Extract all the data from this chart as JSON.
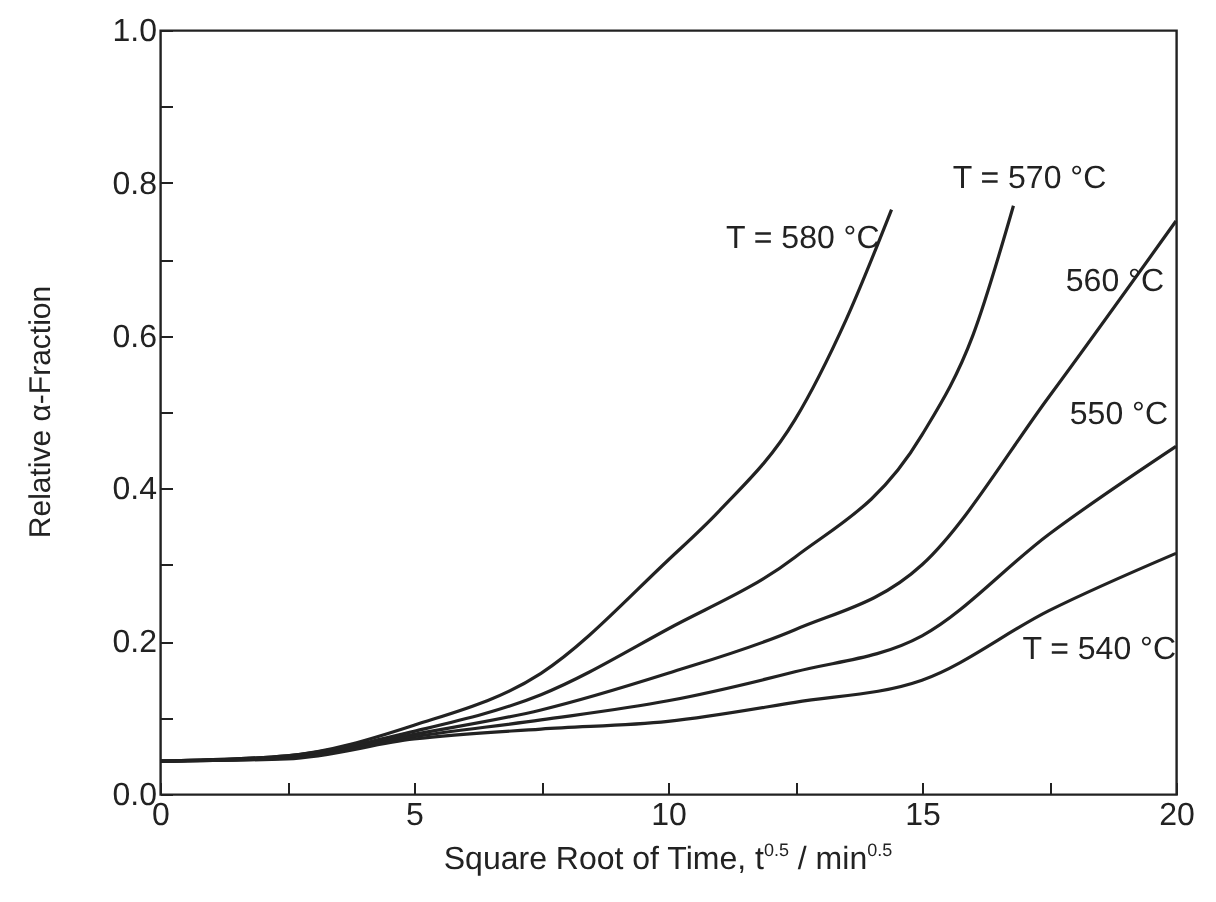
{
  "chart_data": {
    "type": "line",
    "xlabel": "Square Root of Time, t$^{0.5}$ / min$^{0.5}$",
    "ylabel": "Relative α-Fraction",
    "xlim": [
      0,
      20
    ],
    "xticks": [
      0,
      {
        "value": 2.5,
        "label": null
      },
      5,
      {
        "value": 7.5,
        "label": null
      },
      10,
      {
        "value": 12.5,
        "label": null
      },
      15,
      {
        "value": 17.5,
        "label": null
      },
      20
    ],
    "ylim": [
      0,
      1
    ],
    "yticks": [
      {
        "value": 0,
        "label": "0.0"
      },
      {
        "value": 0.1,
        "label": null
      },
      {
        "value": 0.2,
        "label": "0.2"
      },
      {
        "value": 0.3,
        "label": null
      },
      {
        "value": 0.4,
        "label": "0.4"
      },
      {
        "value": 0.5,
        "label": null
      },
      {
        "value": 0.6,
        "label": "0.6"
      },
      {
        "value": 0.7,
        "label": null
      },
      {
        "value": 0.8,
        "label": "0.8"
      },
      {
        "value": 0.9,
        "label": null
      },
      {
        "value": 1,
        "label": "1.0"
      }
    ],
    "grid": false,
    "marker": "none",
    "line_style": "solid",
    "series": [
      {
        "name": "T = 580 °C",
        "color": "#222222",
        "x": [
          0,
          2.5,
          5,
          7.5,
          10,
          11,
          12.5,
          13.5,
          14.4
        ],
        "values": [
          0.043,
          0.05,
          0.09,
          0.158,
          0.306,
          0.37,
          0.49,
          0.62,
          0.765
        ]
      },
      {
        "name": "T = 570 °C",
        "color": "#222222",
        "x": [
          0,
          2.5,
          5,
          7.5,
          10,
          12.5,
          15,
          16,
          16.8
        ],
        "values": [
          0.043,
          0.05,
          0.082,
          0.13,
          0.216,
          0.31,
          0.47,
          0.6,
          0.77
        ]
      },
      {
        "name": "560 °C",
        "color": "#222222",
        "x": [
          0,
          2.5,
          5,
          7.5,
          10,
          12.5,
          15,
          17.5,
          20
        ],
        "values": [
          0.043,
          0.048,
          0.078,
          0.11,
          0.158,
          0.215,
          0.3,
          0.52,
          0.75
        ]
      },
      {
        "name": "550 °C",
        "color": "#222222",
        "x": [
          0,
          2.5,
          5,
          7.5,
          10,
          12.5,
          15,
          17.5,
          20
        ],
        "values": [
          0.043,
          0.047,
          0.075,
          0.097,
          0.122,
          0.16,
          0.207,
          0.34,
          0.455
        ]
      },
      {
        "name": "T = 540 °C",
        "color": "#222222",
        "x": [
          0,
          2.5,
          5,
          7.5,
          10,
          12.5,
          15,
          17.5,
          20
        ],
        "values": [
          0.043,
          0.046,
          0.072,
          0.085,
          0.095,
          0.12,
          0.149,
          0.24,
          0.315
        ]
      }
    ]
  }
}
